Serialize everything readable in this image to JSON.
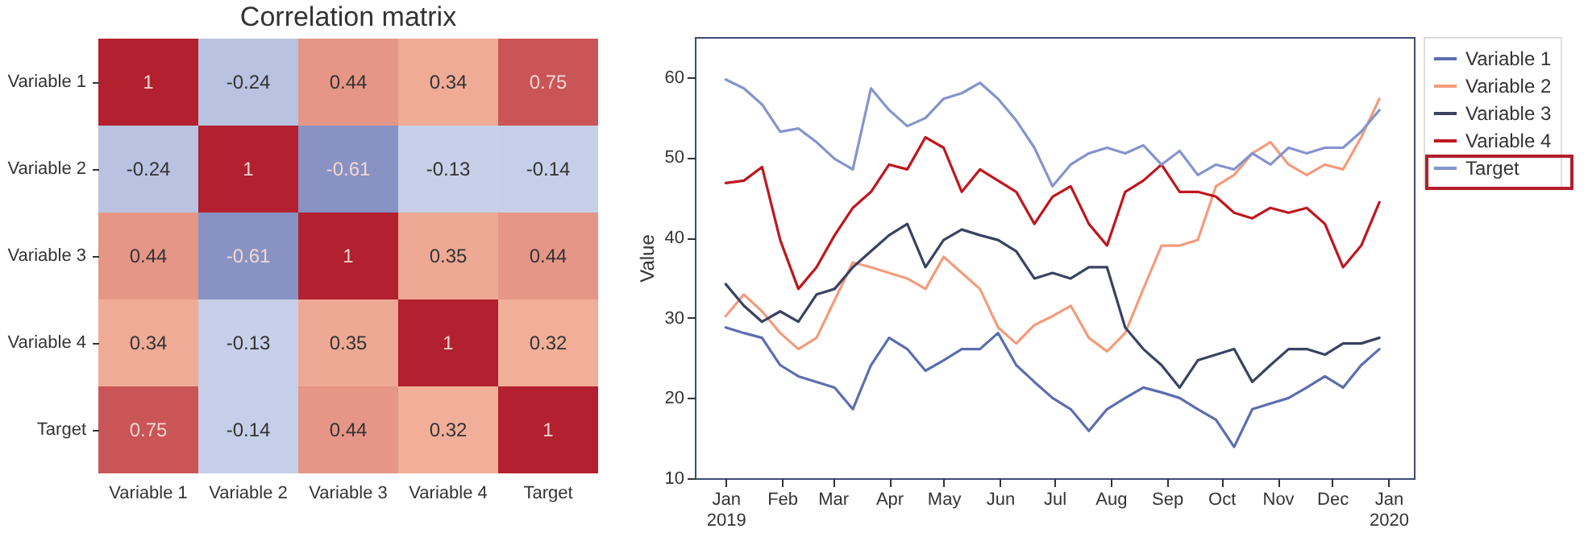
{
  "chart_data": [
    {
      "type": "heatmap",
      "title": "Correlation matrix",
      "categories": [
        "Variable 1",
        "Variable 2",
        "Variable 3",
        "Variable 4",
        "Target"
      ],
      "y_categories": [
        "Variable 1",
        "Variable 2",
        "Variable 3",
        "Variable 4",
        "Target"
      ],
      "cells": [
        [
          1,
          -0.24,
          0.44,
          0.34,
          0.75
        ],
        [
          -0.24,
          1,
          -0.61,
          -0.13,
          -0.14
        ],
        [
          0.44,
          -0.61,
          1,
          0.35,
          0.44
        ],
        [
          0.34,
          -0.13,
          0.35,
          1,
          0.32
        ],
        [
          0.75,
          -0.14,
          0.44,
          0.32,
          1
        ]
      ],
      "data_labels": true
    },
    {
      "type": "line",
      "ylabel": "Value",
      "ylim": [
        10,
        65
      ],
      "yticks": [
        10,
        20,
        30,
        40,
        50,
        60
      ],
      "xlim": [
        "2018-12-15",
        "2020-01-15"
      ],
      "xticks": [
        {
          "value": "2019-01",
          "label": "Jan\n2019"
        },
        {
          "value": "2019-02",
          "label": "Feb"
        },
        {
          "value": "2019-03",
          "label": "Mar"
        },
        {
          "value": "2019-04",
          "label": "Apr"
        },
        {
          "value": "2019-05",
          "label": "May"
        },
        {
          "value": "2019-06",
          "label": "Jun"
        },
        {
          "value": "2019-07",
          "label": "Jul"
        },
        {
          "value": "2019-08",
          "label": "Aug"
        },
        {
          "value": "2019-09",
          "label": "Sep"
        },
        {
          "value": "2019-10",
          "label": "Oct"
        },
        {
          "value": "2019-11",
          "label": "Nov"
        },
        {
          "value": "2019-12",
          "label": "Dec"
        },
        {
          "value": "2020-01",
          "label": "Jan\n2020"
        }
      ],
      "x": [
        "2019-01-01",
        "2019-01-11",
        "2019-01-21",
        "2019-01-31",
        "2019-02-10",
        "2019-02-20",
        "2019-03-02",
        "2019-03-12",
        "2019-03-22",
        "2019-04-01",
        "2019-04-11",
        "2019-04-21",
        "2019-05-01",
        "2019-05-11",
        "2019-05-21",
        "2019-05-31",
        "2019-06-10",
        "2019-06-20",
        "2019-06-30",
        "2019-07-10",
        "2019-07-20",
        "2019-07-30",
        "2019-08-09",
        "2019-08-19",
        "2019-08-29",
        "2019-09-08",
        "2019-09-18",
        "2019-09-28",
        "2019-10-08",
        "2019-10-18",
        "2019-10-28",
        "2019-11-07",
        "2019-11-17",
        "2019-11-27",
        "2019-12-07",
        "2019-12-17",
        "2019-12-27"
      ],
      "series": [
        {
          "name": "Variable 1",
          "color": "#5b6eae",
          "values": [
            28.8,
            28.1,
            27.5,
            24.1,
            22.7,
            22,
            21.3,
            18.6,
            24.1,
            27.5,
            26.1,
            23.4,
            24.7,
            26.1,
            26.1,
            28.1,
            24.1,
            22,
            20,
            18.6,
            15.9,
            18.6,
            20,
            21.3,
            20.7,
            20,
            18.6,
            17.3,
            13.9,
            18.6,
            19.3,
            20,
            21.3,
            22.7,
            21.3,
            24.1,
            26.1
          ]
        },
        {
          "name": "Variable 2",
          "color": "#f39c7c",
          "values": [
            30.2,
            32.9,
            30.8,
            28.1,
            26.1,
            27.5,
            32.2,
            36.9,
            36.3,
            35.6,
            34.9,
            33.6,
            37.6,
            35.6,
            33.6,
            28.8,
            26.8,
            29.1,
            30.2,
            31.5,
            27.5,
            25.8,
            28.1,
            33.6,
            39,
            39,
            39.7,
            46.4,
            47.8,
            50.5,
            51.9,
            49.1,
            47.8,
            49.1,
            48.5,
            52.5,
            57.3
          ]
        },
        {
          "name": "Variable 3",
          "color": "#3b4262",
          "values": [
            34.2,
            31.5,
            29.5,
            30.8,
            29.5,
            32.9,
            33.6,
            36.3,
            38.3,
            40.3,
            41.7,
            36.3,
            39.7,
            41,
            40.3,
            39.7,
            38.3,
            34.9,
            35.6,
            34.9,
            36.3,
            36.3,
            28.8,
            26.1,
            24.1,
            21.3,
            24.7,
            25.4,
            26.1,
            22,
            24.1,
            26.1,
            26.1,
            25.4,
            26.8,
            26.8,
            27.5
          ]
        },
        {
          "name": "Variable 4",
          "color": "#c0161e",
          "values": [
            46.8,
            47.1,
            48.8,
            39.7,
            33.6,
            36.3,
            40.3,
            43.7,
            45.7,
            49.1,
            48.5,
            52.5,
            51.2,
            45.7,
            48.5,
            47.1,
            45.7,
            41.7,
            45.1,
            46.4,
            41.7,
            39,
            45.7,
            47.1,
            49.1,
            45.7,
            45.7,
            45.1,
            43.1,
            42.4,
            43.7,
            43.1,
            43.7,
            41.7,
            36.3,
            39,
            44.4
          ]
        },
        {
          "name": "Target",
          "color": "#8494cc",
          "values": [
            59.7,
            58.6,
            56.6,
            53.2,
            53.6,
            51.9,
            49.8,
            48.5,
            58.6,
            55.9,
            53.9,
            54.9,
            57.3,
            58,
            59.3,
            57.3,
            54.6,
            51.2,
            46.4,
            49.1,
            50.5,
            51.2,
            50.5,
            51.5,
            49.1,
            50.8,
            47.8,
            49.1,
            48.5,
            50.5,
            49.1,
            51.2,
            50.5,
            51.2,
            51.2,
            53.2,
            55.9
          ]
        }
      ],
      "legend": "top right",
      "line_style": "solid"
    }
  ]
}
